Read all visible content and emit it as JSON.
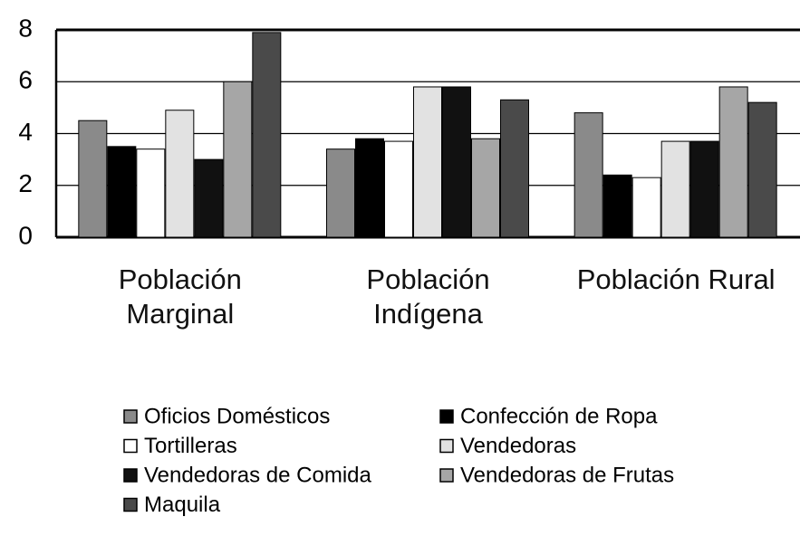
{
  "chart_data": {
    "type": "bar",
    "categories": [
      "Población Marginal",
      "Población Indígena",
      "Población Rural"
    ],
    "series": [
      {
        "name": "Oficios Domésticos",
        "color": "#8a8a8a",
        "values": [
          4.5,
          3.4,
          4.8
        ]
      },
      {
        "name": "Confección de Ropa",
        "color": "#000000",
        "values": [
          3.5,
          3.8,
          2.4
        ]
      },
      {
        "name": "Tortilleras",
        "color": "#ffffff",
        "values": [
          3.4,
          3.7,
          2.3
        ]
      },
      {
        "name": "Vendedoras",
        "color": "#e2e2e2",
        "values": [
          4.9,
          5.8,
          3.7
        ]
      },
      {
        "name": "Vendedoras de Comida",
        "color": "#111111",
        "values": [
          3.0,
          5.8,
          3.7
        ]
      },
      {
        "name": "Vendedoras de Frutas",
        "color": "#a6a6a6",
        "values": [
          6.0,
          3.8,
          5.8
        ]
      },
      {
        "name": "Maquila",
        "color": "#4a4a4a",
        "values": [
          7.9,
          5.3,
          5.2
        ]
      }
    ],
    "ylim": [
      0,
      8
    ],
    "yticks": [
      0,
      2,
      4,
      6,
      8
    ],
    "grid": true
  }
}
